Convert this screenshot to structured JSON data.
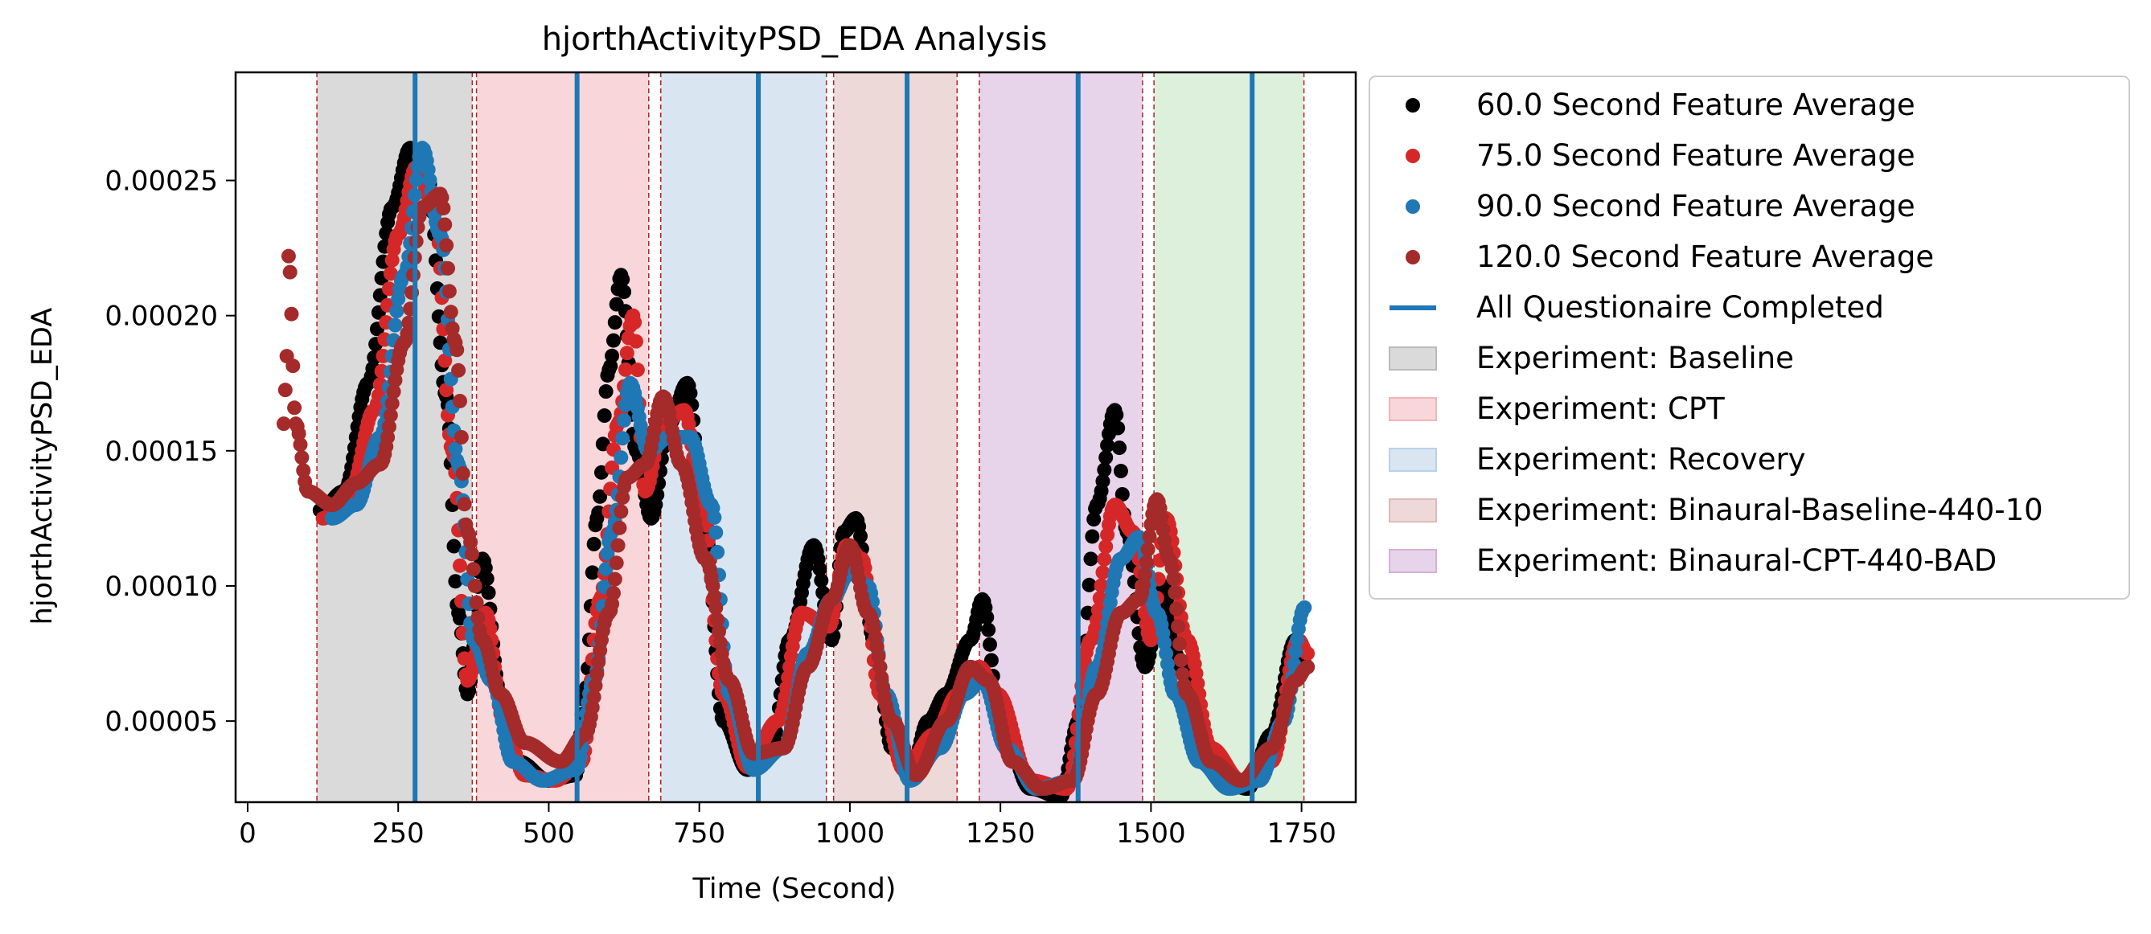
{
  "chart_data": {
    "type": "scatter",
    "title": "hjorthActivityPSD_EDA Analysis",
    "xlabel": "Time (Second)",
    "ylabel": "hjorthActivityPSD_EDA",
    "xlim": [
      -20,
      1840
    ],
    "ylim": [
      2e-05,
      0.00029
    ],
    "x_ticks": [
      0,
      250,
      500,
      750,
      1000,
      1250,
      1500,
      1750
    ],
    "x_tick_labels": [
      "0",
      "250",
      "500",
      "750",
      "1000",
      "1250",
      "1500",
      "1750"
    ],
    "y_ticks": [
      5e-05,
      0.0001,
      0.00015,
      0.0002,
      0.00025
    ],
    "y_tick_labels": [
      "0.00005",
      "0.00010",
      "0.00015",
      "0.00020",
      "0.00025"
    ],
    "grid": false,
    "legend_position": "outside-right-top",
    "series": [
      {
        "name": "60.0 Second Feature Average",
        "color": "#000000",
        "points": [
          [
            120,
            0.000128
          ],
          [
            160,
            0.000135
          ],
          [
            200,
            0.000175
          ],
          [
            240,
            0.00024
          ],
          [
            270,
            0.000262
          ],
          [
            300,
            0.00025
          ],
          [
            330,
            0.00017
          ],
          [
            350,
            9e-05
          ],
          [
            365,
            6e-05
          ],
          [
            390,
            0.00011
          ],
          [
            420,
            6e-05
          ],
          [
            450,
            3.5e-05
          ],
          [
            500,
            2.8e-05
          ],
          [
            545,
            3e-05
          ],
          [
            560,
            6e-05
          ],
          [
            580,
            0.000125
          ],
          [
            600,
            0.00018
          ],
          [
            620,
            0.000215
          ],
          [
            645,
            0.00015
          ],
          [
            670,
            0.000125
          ],
          [
            700,
            0.00016
          ],
          [
            730,
            0.000175
          ],
          [
            760,
            0.00012
          ],
          [
            790,
            5e-05
          ],
          [
            830,
            3.2e-05
          ],
          [
            870,
            4e-05
          ],
          [
            900,
            8e-05
          ],
          [
            940,
            0.000115
          ],
          [
            970,
            8e-05
          ],
          [
            990,
            0.00012
          ],
          [
            1010,
            0.000125
          ],
          [
            1040,
            8e-05
          ],
          [
            1070,
            4e-05
          ],
          [
            1100,
            3e-05
          ],
          [
            1130,
            5e-05
          ],
          [
            1160,
            6e-05
          ],
          [
            1200,
            8e-05
          ],
          [
            1220,
            9.5e-05
          ],
          [
            1250,
            5e-05
          ],
          [
            1300,
            2.5e-05
          ],
          [
            1350,
            2.2e-05
          ],
          [
            1380,
            5e-05
          ],
          [
            1410,
            0.00013
          ],
          [
            1440,
            0.000165
          ],
          [
            1460,
            0.00012
          ],
          [
            1490,
            7e-05
          ],
          [
            1520,
            0.0001
          ],
          [
            1550,
            7e-05
          ],
          [
            1580,
            4e-05
          ],
          [
            1620,
            2.8e-05
          ],
          [
            1660,
            2.5e-05
          ],
          [
            1700,
            4.5e-05
          ],
          [
            1740,
            8e-05
          ],
          [
            1760,
            7e-05
          ]
        ]
      },
      {
        "name": "75.0 Second Feature Average",
        "color": "#d62728",
        "points": [
          [
            125,
            0.000125
          ],
          [
            170,
            0.000135
          ],
          [
            210,
            0.000165
          ],
          [
            250,
            0.00023
          ],
          [
            280,
            0.000255
          ],
          [
            310,
            0.00024
          ],
          [
            340,
            0.00015
          ],
          [
            365,
            6.5e-05
          ],
          [
            395,
            9e-05
          ],
          [
            425,
            5e-05
          ],
          [
            460,
            3e-05
          ],
          [
            510,
            2.8e-05
          ],
          [
            555,
            3.5e-05
          ],
          [
            585,
            9.5e-05
          ],
          [
            615,
            0.00016
          ],
          [
            640,
            0.0002
          ],
          [
            660,
            0.000135
          ],
          [
            690,
            0.00016
          ],
          [
            725,
            0.000165
          ],
          [
            755,
            0.00013
          ],
          [
            790,
            6e-05
          ],
          [
            830,
            3.3e-05
          ],
          [
            880,
            5e-05
          ],
          [
            920,
            9e-05
          ],
          [
            965,
            8.5e-05
          ],
          [
            995,
            0.000115
          ],
          [
            1020,
            0.00011
          ],
          [
            1050,
            6e-05
          ],
          [
            1090,
            3.2e-05
          ],
          [
            1140,
            4.5e-05
          ],
          [
            1180,
            6e-05
          ],
          [
            1215,
            7e-05
          ],
          [
            1245,
            6e-05
          ],
          [
            1300,
            2.8e-05
          ],
          [
            1360,
            2.5e-05
          ],
          [
            1400,
            8e-05
          ],
          [
            1440,
            0.00013
          ],
          [
            1470,
            0.00012
          ],
          [
            1500,
            8e-05
          ],
          [
            1525,
            0.000125
          ],
          [
            1560,
            8e-05
          ],
          [
            1600,
            4e-05
          ],
          [
            1650,
            2.8e-05
          ],
          [
            1700,
            3.5e-05
          ],
          [
            1745,
            8e-05
          ],
          [
            1760,
            7.5e-05
          ]
        ]
      },
      {
        "name": "90.0 Second Feature Average",
        "color": "#1f77b4",
        "points": [
          [
            140,
            0.000125
          ],
          [
            180,
            0.00013
          ],
          [
            220,
            0.000155
          ],
          [
            260,
            0.000215
          ],
          [
            290,
            0.000262
          ],
          [
            320,
            0.00023
          ],
          [
            350,
            0.000145
          ],
          [
            375,
            8e-05
          ],
          [
            405,
            6.5e-05
          ],
          [
            440,
            3.5e-05
          ],
          [
            490,
            2.8e-05
          ],
          [
            545,
            3.2e-05
          ],
          [
            575,
            6.5e-05
          ],
          [
            605,
            0.00012
          ],
          [
            635,
            0.000175
          ],
          [
            665,
            0.00015
          ],
          [
            700,
            0.000155
          ],
          [
            735,
            0.000155
          ],
          [
            770,
            0.00013
          ],
          [
            800,
            6e-05
          ],
          [
            840,
            3.2e-05
          ],
          [
            890,
            4e-05
          ],
          [
            930,
            7.5e-05
          ],
          [
            970,
            9.5e-05
          ],
          [
            1000,
            0.000105
          ],
          [
            1030,
            0.0001
          ],
          [
            1060,
            6e-05
          ],
          [
            1100,
            2.8e-05
          ],
          [
            1150,
            4e-05
          ],
          [
            1190,
            6e-05
          ],
          [
            1220,
            6.5e-05
          ],
          [
            1260,
            4e-05
          ],
          [
            1310,
            2.5e-05
          ],
          [
            1370,
            2.8e-05
          ],
          [
            1410,
            7e-05
          ],
          [
            1450,
            0.00011
          ],
          [
            1480,
            0.000118
          ],
          [
            1510,
            9e-05
          ],
          [
            1540,
            6e-05
          ],
          [
            1580,
            3.5e-05
          ],
          [
            1630,
            2.5e-05
          ],
          [
            1680,
            2.8e-05
          ],
          [
            1720,
            5e-05
          ],
          [
            1755,
            9.2e-05
          ]
        ]
      },
      {
        "name": "120.0 Second Feature Average",
        "color": "#a52a2a",
        "points": [
          [
            60,
            0.00016
          ],
          [
            65,
            0.000185
          ],
          [
            68,
            0.000222
          ],
          [
            80,
            0.00016
          ],
          [
            100,
            0.000135
          ],
          [
            140,
            0.00013
          ],
          [
            180,
            0.000138
          ],
          [
            220,
            0.000145
          ],
          [
            260,
            0.00019
          ],
          [
            290,
            0.00024
          ],
          [
            320,
            0.000245
          ],
          [
            345,
            0.00019
          ],
          [
            365,
            0.00012
          ],
          [
            390,
            8e-05
          ],
          [
            420,
            6e-05
          ],
          [
            460,
            4.2e-05
          ],
          [
            520,
            3.5e-05
          ],
          [
            560,
            4.5e-05
          ],
          [
            600,
            9e-05
          ],
          [
            630,
            0.00014
          ],
          [
            660,
            0.000145
          ],
          [
            690,
            0.00017
          ],
          [
            720,
            0.000145
          ],
          [
            760,
            0.00011
          ],
          [
            800,
            6.5e-05
          ],
          [
            840,
            3.8e-05
          ],
          [
            890,
            4e-05
          ],
          [
            930,
            7e-05
          ],
          [
            970,
            9.5e-05
          ],
          [
            1000,
            0.000115
          ],
          [
            1030,
            9e-05
          ],
          [
            1070,
            5e-05
          ],
          [
            1110,
            3e-05
          ],
          [
            1160,
            5e-05
          ],
          [
            1200,
            7e-05
          ],
          [
            1230,
            6.5e-05
          ],
          [
            1270,
            3.5e-05
          ],
          [
            1320,
            2.5e-05
          ],
          [
            1370,
            2.8e-05
          ],
          [
            1410,
            6e-05
          ],
          [
            1450,
            9e-05
          ],
          [
            1480,
            9.5e-05
          ],
          [
            1510,
            0.000132
          ],
          [
            1530,
            0.00011
          ],
          [
            1560,
            6e-05
          ],
          [
            1600,
            3.5e-05
          ],
          [
            1650,
            2.8e-05
          ],
          [
            1700,
            4e-05
          ],
          [
            1740,
            6.5e-05
          ],
          [
            1760,
            7e-05
          ]
        ]
      }
    ],
    "questionnaire_lines": {
      "name": "All Questionaire Completed",
      "color": "#1f77b4",
      "x": [
        278,
        547,
        848,
        1095,
        1379,
        1668
      ]
    },
    "experiment_spans": [
      {
        "name": "Experiment: Baseline",
        "color": "#bbbbbb",
        "x0": 115,
        "x1": 373
      },
      {
        "name": "Experiment: CPT",
        "color": "#f2b5b9",
        "x0": 380,
        "x1": 666
      },
      {
        "name": "Experiment: Recovery",
        "color": "#b9d1e8",
        "x0": 686,
        "x1": 961
      },
      {
        "name": "Experiment: Binaural-Baseline-440-10",
        "color": "#e0b9b9",
        "x0": 973,
        "x1": 1178
      },
      {
        "name": "Experiment: Binaural-CPT-440-BAD",
        "color": "#d6b1d9",
        "x0": 1215,
        "x1": 1486
      },
      {
        "name": "",
        "color": "#bfe3bf",
        "x0": 1505,
        "x1": 1754
      }
    ],
    "span_boundary_lines": [
      115,
      373,
      380,
      666,
      686,
      961,
      973,
      1178,
      1215,
      1486,
      1505,
      1754
    ],
    "legend": [
      {
        "kind": "marker",
        "label": "60.0 Second Feature Average",
        "color": "#000000"
      },
      {
        "kind": "marker",
        "label": "75.0 Second Feature Average",
        "color": "#d62728"
      },
      {
        "kind": "marker",
        "label": "90.0 Second Feature Average",
        "color": "#1f77b4"
      },
      {
        "kind": "marker",
        "label": "120.0 Second Feature Average",
        "color": "#a52a2a"
      },
      {
        "kind": "line",
        "label": "All Questionaire Completed",
        "color": "#1f77b4"
      },
      {
        "kind": "patch",
        "label": "Experiment: Baseline",
        "color": "#bbbbbb"
      },
      {
        "kind": "patch",
        "label": "Experiment: CPT",
        "color": "#f2b5b9"
      },
      {
        "kind": "patch",
        "label": "Experiment: Recovery",
        "color": "#b9d1e8"
      },
      {
        "kind": "patch",
        "label": "Experiment: Binaural-Baseline-440-10",
        "color": "#e0b9b9"
      },
      {
        "kind": "patch",
        "label": "Experiment: Binaural-CPT-440-BAD",
        "color": "#d6b1d9"
      }
    ]
  }
}
